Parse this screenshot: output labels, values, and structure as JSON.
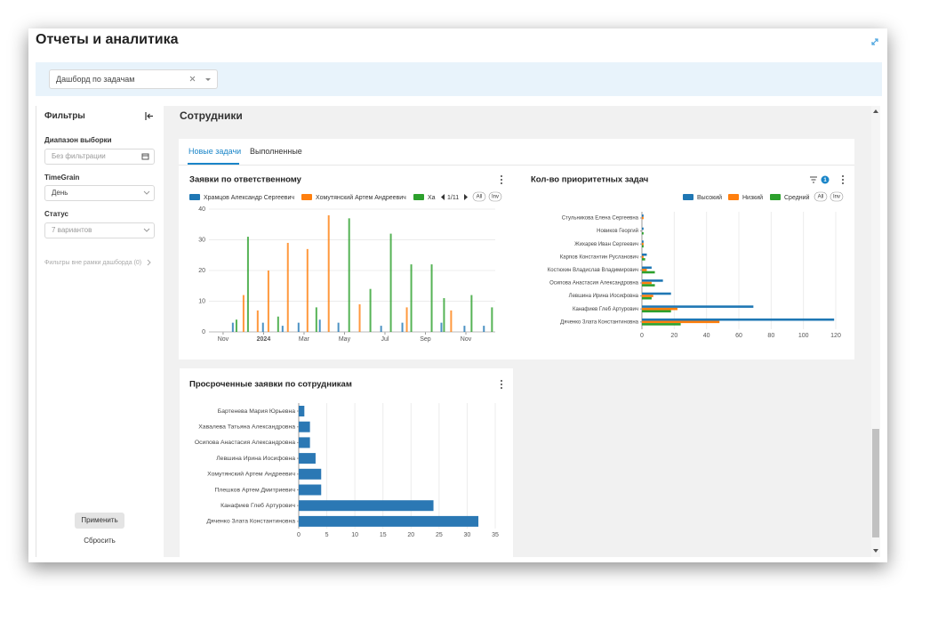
{
  "header": {
    "title": "Отчеты и аналитика",
    "dashboard_select": "Дашборд по задачам"
  },
  "filters": {
    "title": "Фильтры",
    "range_label": "Диапазон выборки",
    "range_placeholder": "Без фильтрации",
    "timegrain_label": "TimeGrain",
    "timegrain_value": "День",
    "status_label": "Статус",
    "status_value": "7 вариантов",
    "outside_filters": "Фильтры вне рамки дашборда (0)",
    "apply": "Применить",
    "reset": "Сбросить"
  },
  "section_title": "Сотрудники",
  "tabs": [
    "Новые задачи",
    "Выполненные"
  ],
  "chart_data": [
    {
      "type": "bar",
      "title": "Заявки по ответственному",
      "legend_page": "1/11",
      "legend_buttons": [
        "All",
        "Inv"
      ],
      "xlim": [
        0.3,
        14.45
      ],
      "xticks": [
        {
          "value": 1,
          "label": "Nov"
        },
        {
          "value": 3,
          "label": "2024"
        },
        {
          "value": 5,
          "label": "Mar"
        },
        {
          "value": 7,
          "label": "May"
        },
        {
          "value": 9,
          "label": "Jul"
        },
        {
          "value": 11,
          "label": "Sep"
        },
        {
          "value": 13,
          "label": "Nov"
        }
      ],
      "ylim": [
        0,
        40
      ],
      "yticks": [
        0,
        10,
        20,
        30,
        40
      ],
      "grid": true,
      "series": [
        {
          "name": "Храмцов Александр Сергеевич",
          "color": "#1f77b4",
          "x": [
            1.48,
            2.97,
            3.94,
            4.73,
            5.78,
            6.7,
            8.81,
            9.86,
            11.79,
            12.93,
            13.89
          ],
          "values": [
            3,
            3,
            2,
            3,
            4,
            3,
            2,
            3,
            3,
            2,
            2
          ]
        },
        {
          "name": "Хомутянский Артем Андреевич",
          "color": "#ff7f0e",
          "x": [
            2.01,
            2.71,
            3.24,
            4.2,
            5.17,
            6.22,
            7.75,
            10.08,
            12.27
          ],
          "values": [
            12,
            7,
            20,
            29,
            27,
            38,
            9,
            8,
            7
          ]
        },
        {
          "name": "Ха",
          "color": "#2ca02c",
          "x": [
            1.66,
            2.23,
            3.72,
            5.61,
            7.23,
            8.28,
            9.29,
            10.3,
            11.31,
            11.92,
            13.28,
            14.29
          ],
          "values": [
            4,
            31,
            5,
            8,
            37,
            14,
            32,
            22,
            22,
            11,
            12,
            8
          ]
        }
      ]
    },
    {
      "type": "barh",
      "title": "Кол-во приоритетных задач",
      "filter_count": 1,
      "legend_buttons": [
        "All",
        "Inv"
      ],
      "categories": [
        "Стульникова Елена Сергеевна",
        "Новиков Георгий",
        "Жихарев Иван Сергеевич",
        "Карпов Константин Русланович",
        "Костюхин Владислав Владимирович",
        "Осипова Анастасия Александровна",
        "Левшина Ирина Иосифовна",
        "Канафиев  Глеб Артурович",
        "Дяченко Злата Константиновна"
      ],
      "xlim": [
        0,
        120
      ],
      "xticks": [
        0,
        20,
        40,
        60,
        80,
        100,
        120
      ],
      "grid": true,
      "series": [
        {
          "name": "Высокий",
          "color": "#1f77b4",
          "values": [
            1,
            1,
            1,
            3,
            6,
            13,
            18,
            69,
            119
          ]
        },
        {
          "name": "Низкий",
          "color": "#ff7f0e",
          "values": [
            1,
            0,
            1,
            1,
            3,
            6,
            7,
            22,
            48
          ]
        },
        {
          "name": "Средний",
          "color": "#2ca02c",
          "values": [
            0,
            1,
            1,
            2,
            8,
            8,
            6,
            18,
            24
          ]
        }
      ]
    },
    {
      "type": "barh",
      "title": "Просроченные заявки по сотрудникам",
      "categories": [
        "Бартенева  Мария  Юрьевна",
        "Хавалева Татьяна Александровна",
        "Осипова Анастасия Александровна",
        "Левшина Ирина Иосифовна",
        "Хомутянский Артем Андреевич",
        "Плешков  Артем Дмитриевич",
        "Канафиев  Глеб Артурович",
        "Дяченко Злата Константиновна"
      ],
      "xlim": [
        0,
        35
      ],
      "xticks": [
        0,
        5,
        10,
        15,
        20,
        25,
        30,
        35
      ],
      "grid": true,
      "series": [
        {
          "color": "#2b78b4",
          "values": [
            1,
            2,
            2,
            3,
            4,
            4,
            24,
            32
          ]
        }
      ]
    }
  ]
}
